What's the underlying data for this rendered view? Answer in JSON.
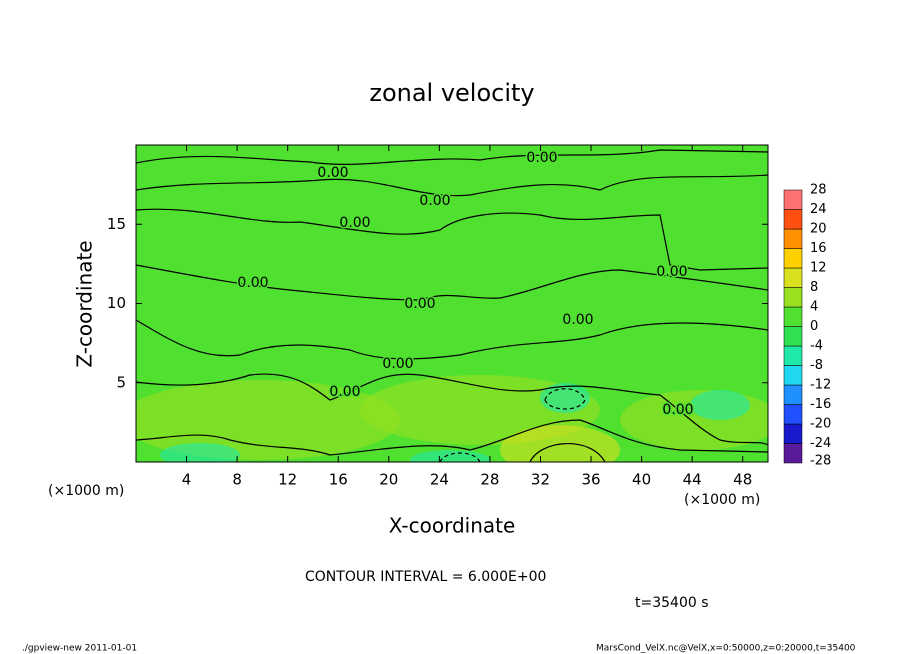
{
  "chart_data": {
    "type": "contour",
    "title": "zonal velocity",
    "x_label": "X-coordinate",
    "y_label": "Z-coordinate",
    "x_unit_label": "(×1000 m)",
    "y_unit_label": "(×1000 m)",
    "xlim": [
      0,
      50
    ],
    "ylim": [
      0,
      20
    ],
    "xticks": [
      4,
      8,
      12,
      16,
      20,
      24,
      28,
      32,
      36,
      40,
      44,
      48
    ],
    "yticks": [
      5,
      10,
      15
    ],
    "contour_labels": [
      "0.00",
      "0.00",
      "0.00",
      "0.00",
      "0.00",
      "0.00",
      "0.00",
      "0.00",
      "0.00",
      "0.00",
      "0.00"
    ],
    "contour_interval": "CONTOUR INTERVAL = 6.000E+00",
    "time_label": "t=35400 s",
    "colorbar": {
      "levels": [
        -28,
        -24,
        -20,
        -16,
        -12,
        -8,
        -4,
        0,
        4,
        8,
        12,
        16,
        20,
        24,
        28
      ],
      "colors": [
        "#5a1a9a",
        "#1a1acd",
        "#2050ff",
        "#2090ff",
        "#20d8f0",
        "#20e8a8",
        "#30e050",
        "#50e030",
        "#98e020",
        "#d8e020",
        "#ffd000",
        "#ff9000",
        "#ff5010",
        "#ff7070"
      ]
    },
    "footer_left": "./gpview-new  2011-01-01",
    "footer_right": "MarsCond_VelX.nc@VelX,x=0:50000,z=0:20000,t=35400"
  }
}
